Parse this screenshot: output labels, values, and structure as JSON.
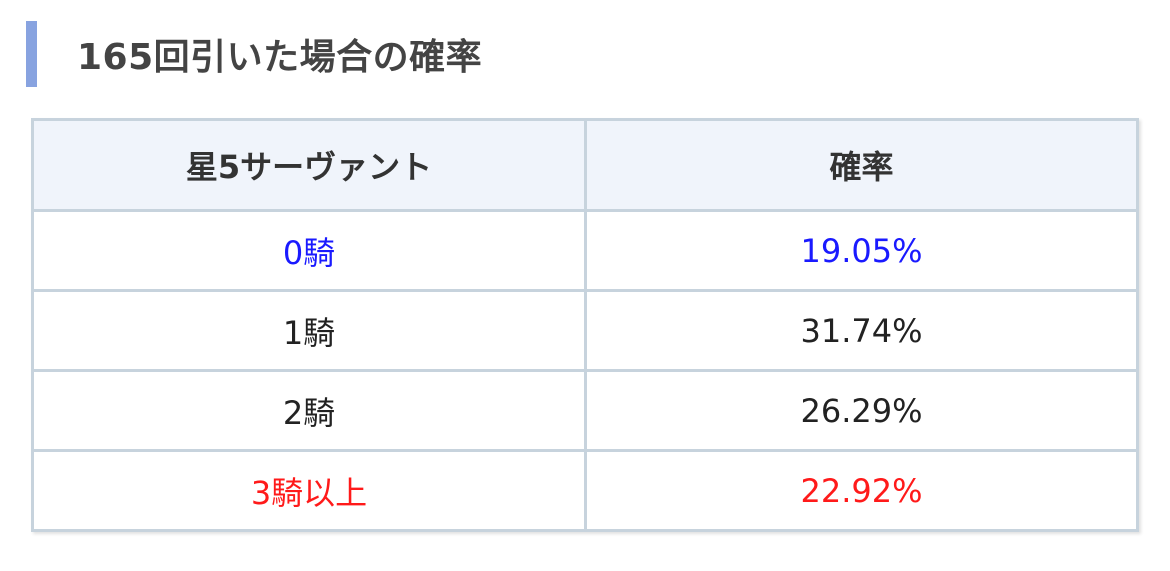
{
  "title": "165回引いた場合の確率",
  "colors": {
    "accent_bar": "#88a3e0",
    "blue": "#1a1aff",
    "red": "#ff1a1a",
    "header_bg": "#f0f4fb",
    "border": "#c7d3dd"
  },
  "table": {
    "headers": [
      "星5サーヴァント",
      "確率"
    ],
    "rows": [
      {
        "count": "0騎",
        "prob": "19.05%",
        "color": "#1a1aff"
      },
      {
        "count": "1騎",
        "prob": "31.74%",
        "color": "#222222"
      },
      {
        "count": "2騎",
        "prob": "26.29%",
        "color": "#222222"
      },
      {
        "count": "3騎以上",
        "prob": "22.92%",
        "color": "#ff1a1a"
      }
    ]
  }
}
